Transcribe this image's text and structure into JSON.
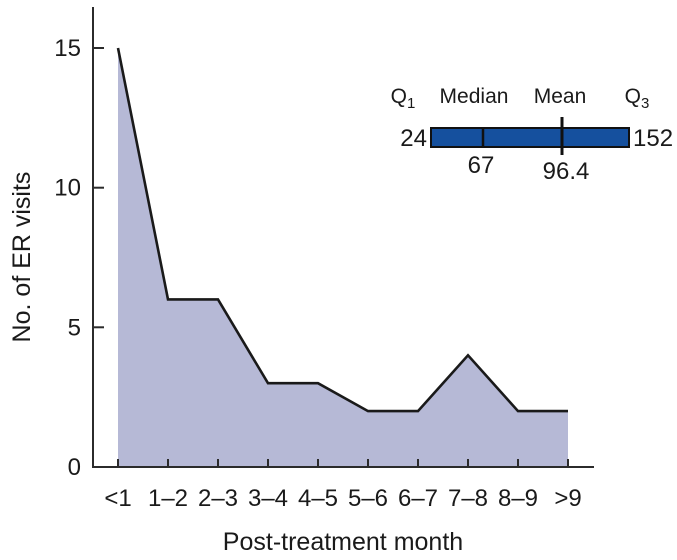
{
  "figure": {
    "background_color": "#ffffff",
    "text_color": "#1a1a1a",
    "axis_color": "#2b2b2b"
  },
  "chart_data": {
    "type": "area",
    "title": "",
    "xlabel": "Post-treatment month",
    "ylabel": "No. of ER visits",
    "categories": [
      "<1",
      "1–2",
      "2–3",
      "3–4",
      "4–5",
      "5–6",
      "6–7",
      "7–8",
      "8–9",
      ">9"
    ],
    "values": [
      15,
      6,
      6,
      3,
      3,
      2,
      2,
      4,
      2,
      2
    ],
    "yticks": [
      0,
      5,
      10,
      15
    ],
    "ylim": [
      0,
      16.5
    ],
    "grid": false,
    "legend": "none",
    "fill_color": "#b6b9d6",
    "line_color": "#1a1a1a",
    "inset_boxbar": {
      "description": "quartile bar of ER visit counts",
      "bar_color": "#15509e",
      "bar_border_color": "#111111",
      "q1_base": "Q",
      "q1_sub": "1",
      "median_label": "Median",
      "mean_label": "Mean",
      "q3_base": "Q",
      "q3_sub": "3",
      "q1_value": "24",
      "median_value": "67",
      "mean_value": "96.4",
      "q3_value": "152"
    }
  }
}
